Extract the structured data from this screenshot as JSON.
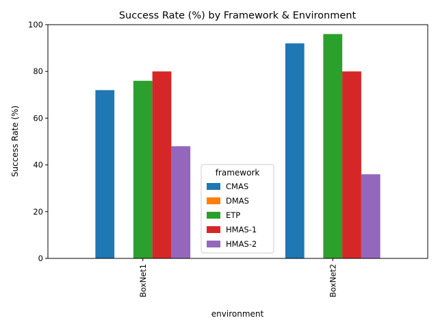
{
  "chart_data": {
    "type": "bar",
    "title": "Success Rate (%) by Framework & Environment",
    "xlabel": "environment",
    "ylabel": "Success Rate (%)",
    "categories": [
      "BoxNet1",
      "BoxNet2"
    ],
    "ylim": [
      0,
      100
    ],
    "yticks": [
      0,
      20,
      40,
      60,
      80,
      100
    ],
    "grid": false,
    "legend": {
      "title": "framework",
      "placement": "lower-center"
    },
    "series": [
      {
        "name": "CMAS",
        "color": "#1f77b4",
        "values": [
          72,
          92
        ]
      },
      {
        "name": "DMAS",
        "color": "#ff7f0e",
        "values": [
          0,
          0
        ]
      },
      {
        "name": "ETP",
        "color": "#2ca02c",
        "values": [
          76,
          96
        ]
      },
      {
        "name": "HMAS-1",
        "color": "#d62728",
        "values": [
          80,
          80
        ]
      },
      {
        "name": "HMAS-2",
        "color": "#9467bd",
        "values": [
          48,
          36
        ]
      }
    ]
  }
}
